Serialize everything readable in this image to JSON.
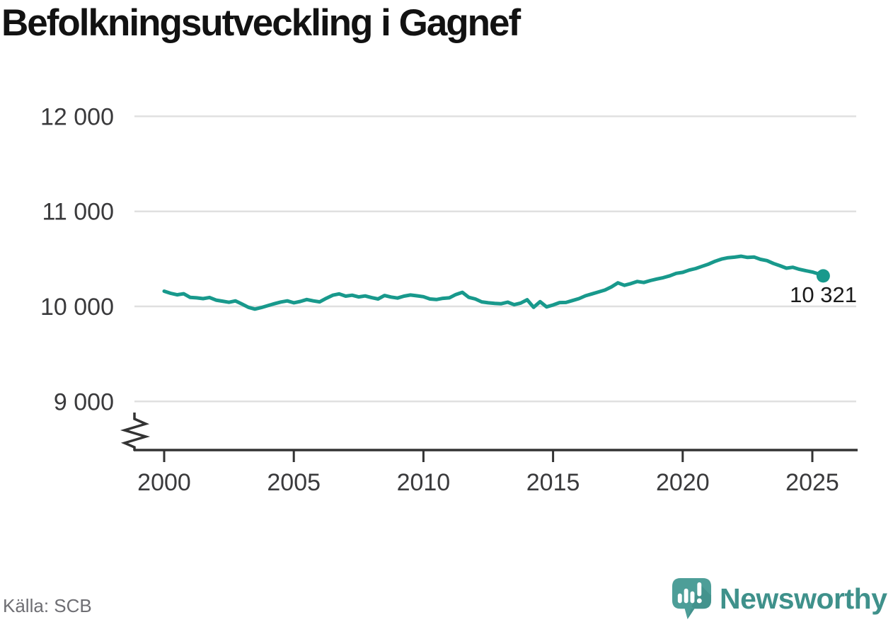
{
  "title": "Befolkningsutveckling i Gagnef",
  "footer": {
    "source_label": "Källa: SCB",
    "brand_name": "Newsworthy"
  },
  "colors": {
    "line": "#18998c",
    "grid": "#e0e0e0",
    "axis": "#333333",
    "tick_text": "#3a3a3c",
    "title_text": "#121212",
    "source_text": "#6e6e73",
    "brand_teal": "#3f918b",
    "logo_bubble": "#4d9e98",
    "logo_bubble_shade": "#3d8a85",
    "end_label_text": "#1a1a1a"
  },
  "chart_data": {
    "type": "line",
    "title": "Befolkningsutveckling i Gagnef",
    "xlabel": "",
    "ylabel": "",
    "x_ticks": [
      2000,
      2005,
      2010,
      2015,
      2020,
      2025
    ],
    "x_tick_labels": [
      "2000",
      "2005",
      "2010",
      "2015",
      "2020",
      "2025"
    ],
    "y_ticks": [
      9000,
      10000,
      11000,
      12000
    ],
    "y_tick_labels": [
      "9 000",
      "10 000",
      "11 000",
      "12 000"
    ],
    "ylim": [
      8600,
      12250
    ],
    "xlim": [
      1998.9,
      2026.7
    ],
    "grid": "horizontal",
    "y_axis_break": true,
    "legend": "none",
    "last_point_label": "10 321",
    "last_point_value": 10321,
    "source": "Källa: SCB",
    "series": [
      {
        "name": "Befolkning i Gagnef",
        "points": [
          [
            2000.0,
            10160
          ],
          [
            2000.25,
            10138
          ],
          [
            2000.5,
            10122
          ],
          [
            2000.75,
            10133
          ],
          [
            2001.0,
            10095
          ],
          [
            2001.25,
            10090
          ],
          [
            2001.5,
            10082
          ],
          [
            2001.75,
            10094
          ],
          [
            2002.0,
            10066
          ],
          [
            2002.25,
            10055
          ],
          [
            2002.5,
            10043
          ],
          [
            2002.75,
            10058
          ],
          [
            2003.0,
            10025
          ],
          [
            2003.25,
            9990
          ],
          [
            2003.5,
            9972
          ],
          [
            2003.75,
            9988
          ],
          [
            2004.0,
            10008
          ],
          [
            2004.25,
            10028
          ],
          [
            2004.5,
            10046
          ],
          [
            2004.75,
            10058
          ],
          [
            2005.0,
            10038
          ],
          [
            2005.25,
            10052
          ],
          [
            2005.5,
            10072
          ],
          [
            2005.75,
            10058
          ],
          [
            2006.0,
            10048
          ],
          [
            2006.25,
            10085
          ],
          [
            2006.5,
            10118
          ],
          [
            2006.75,
            10132
          ],
          [
            2007.0,
            10108
          ],
          [
            2007.25,
            10118
          ],
          [
            2007.5,
            10100
          ],
          [
            2007.75,
            10110
          ],
          [
            2008.0,
            10092
          ],
          [
            2008.25,
            10078
          ],
          [
            2008.5,
            10115
          ],
          [
            2008.75,
            10098
          ],
          [
            2009.0,
            10088
          ],
          [
            2009.25,
            10108
          ],
          [
            2009.5,
            10120
          ],
          [
            2009.75,
            10112
          ],
          [
            2010.0,
            10102
          ],
          [
            2010.25,
            10078
          ],
          [
            2010.5,
            10072
          ],
          [
            2010.75,
            10085
          ],
          [
            2011.0,
            10090
          ],
          [
            2011.25,
            10125
          ],
          [
            2011.5,
            10148
          ],
          [
            2011.75,
            10095
          ],
          [
            2012.0,
            10078
          ],
          [
            2012.25,
            10048
          ],
          [
            2012.5,
            10038
          ],
          [
            2012.75,
            10032
          ],
          [
            2013.0,
            10028
          ],
          [
            2013.25,
            10045
          ],
          [
            2013.5,
            10018
          ],
          [
            2013.75,
            10035
          ],
          [
            2014.0,
            10070
          ],
          [
            2014.25,
            9990
          ],
          [
            2014.5,
            10050
          ],
          [
            2014.75,
            9995
          ],
          [
            2015.0,
            10015
          ],
          [
            2015.25,
            10040
          ],
          [
            2015.5,
            10042
          ],
          [
            2015.75,
            10062
          ],
          [
            2016.0,
            10082
          ],
          [
            2016.25,
            10112
          ],
          [
            2016.5,
            10132
          ],
          [
            2016.75,
            10152
          ],
          [
            2017.0,
            10172
          ],
          [
            2017.25,
            10205
          ],
          [
            2017.5,
            10248
          ],
          [
            2017.75,
            10222
          ],
          [
            2018.0,
            10240
          ],
          [
            2018.25,
            10262
          ],
          [
            2018.5,
            10252
          ],
          [
            2018.75,
            10272
          ],
          [
            2019.0,
            10288
          ],
          [
            2019.25,
            10302
          ],
          [
            2019.5,
            10322
          ],
          [
            2019.75,
            10348
          ],
          [
            2020.0,
            10358
          ],
          [
            2020.25,
            10382
          ],
          [
            2020.5,
            10398
          ],
          [
            2020.75,
            10422
          ],
          [
            2021.0,
            10445
          ],
          [
            2021.25,
            10475
          ],
          [
            2021.5,
            10498
          ],
          [
            2021.75,
            10512
          ],
          [
            2022.0,
            10518
          ],
          [
            2022.25,
            10528
          ],
          [
            2022.5,
            10515
          ],
          [
            2022.75,
            10520
          ],
          [
            2023.0,
            10495
          ],
          [
            2023.25,
            10482
          ],
          [
            2023.5,
            10452
          ],
          [
            2023.75,
            10428
          ],
          [
            2024.0,
            10402
          ],
          [
            2024.25,
            10412
          ],
          [
            2024.5,
            10390
          ],
          [
            2024.75,
            10375
          ],
          [
            2025.0,
            10362
          ],
          [
            2025.25,
            10340
          ],
          [
            2025.42,
            10321
          ]
        ]
      }
    ]
  }
}
